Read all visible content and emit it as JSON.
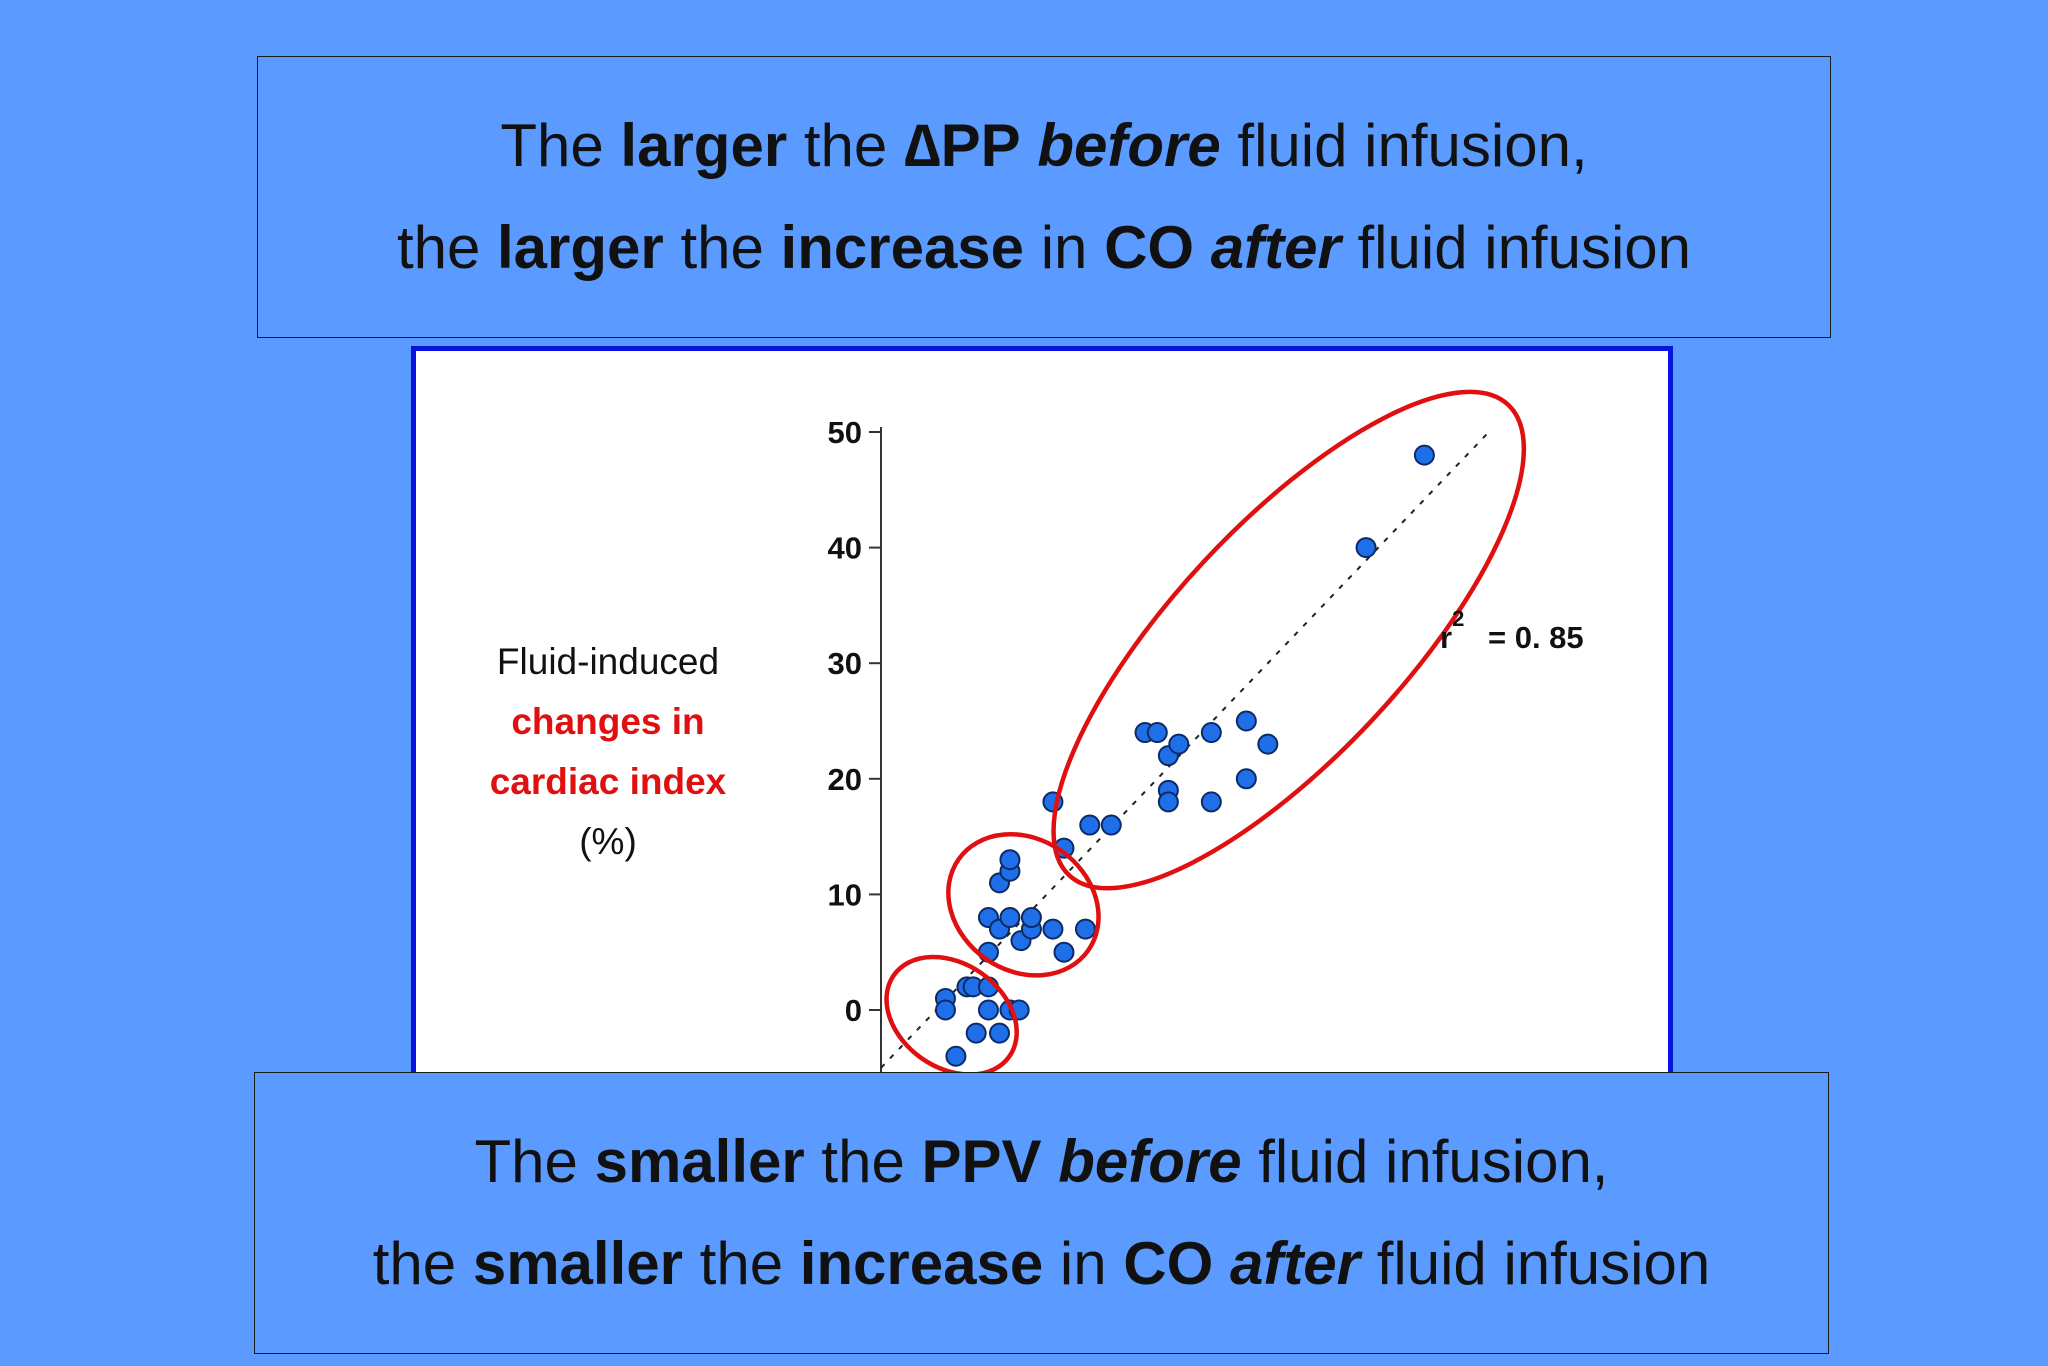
{
  "top_box": {
    "line1": [
      {
        "text": "The ",
        "style": "normal"
      },
      {
        "text": "larger",
        "style": "bold"
      },
      {
        "text": " the ",
        "style": "normal"
      },
      {
        "text": "∆PP",
        "style": "bold"
      },
      {
        "text": " ",
        "style": "normal"
      },
      {
        "text": "before",
        "style": "bold-italic"
      },
      {
        "text": " fluid infusion,",
        "style": "normal"
      }
    ],
    "line2": [
      {
        "text": "the ",
        "style": "normal"
      },
      {
        "text": "larger",
        "style": "bold"
      },
      {
        "text": " the ",
        "style": "normal"
      },
      {
        "text": "increase",
        "style": "bold"
      },
      {
        "text": " in ",
        "style": "normal"
      },
      {
        "text": "CO",
        "style": "bold"
      },
      {
        "text": " ",
        "style": "normal"
      },
      {
        "text": "after",
        "style": "bold-italic"
      },
      {
        "text": " fluid infusion",
        "style": "normal"
      }
    ]
  },
  "bottom_box": {
    "line1": [
      {
        "text": "The ",
        "style": "normal"
      },
      {
        "text": "smaller",
        "style": "bold"
      },
      {
        "text": " the ",
        "style": "normal"
      },
      {
        "text": "PPV",
        "style": "bold"
      },
      {
        "text": " ",
        "style": "normal"
      },
      {
        "text": "before",
        "style": "bold-italic"
      },
      {
        "text": " fluid infusion,",
        "style": "normal"
      }
    ],
    "line2": [
      {
        "text": "the ",
        "style": "normal"
      },
      {
        "text": "smaller",
        "style": "bold"
      },
      {
        "text": " the ",
        "style": "normal"
      },
      {
        "text": "increase",
        "style": "bold"
      },
      {
        "text": " in ",
        "style": "normal"
      },
      {
        "text": "CO",
        "style": "bold"
      },
      {
        "text": " ",
        "style": "normal"
      },
      {
        "text": "after",
        "style": "bold-italic"
      },
      {
        "text": " fluid infusion",
        "style": "normal"
      }
    ]
  },
  "chart_data": {
    "type": "scatter",
    "ylabel": {
      "line1": "Fluid-induced",
      "line2": "changes in",
      "line3": "cardiac index",
      "line4": "(%)"
    },
    "yticks": [
      0,
      10,
      20,
      30,
      40,
      50
    ],
    "ylim": [
      -5,
      50
    ],
    "xlim": [
      0,
      1
    ],
    "annotation": {
      "r_symbol": "r",
      "superscript": "2",
      "value_text": "= 0. 85"
    },
    "colors": {
      "points": "#1f6fe8",
      "ellipses": "#e01010",
      "panel_border": "#0a14e0"
    },
    "points": [
      {
        "x": 0.105,
        "y": 1
      },
      {
        "x": 0.105,
        "y": 0
      },
      {
        "x": 0.122,
        "y": -4
      },
      {
        "x": 0.14,
        "y": 2
      },
      {
        "x": 0.15,
        "y": 2
      },
      {
        "x": 0.155,
        "y": -2
      },
      {
        "x": 0.175,
        "y": 0
      },
      {
        "x": 0.175,
        "y": 2
      },
      {
        "x": 0.193,
        "y": -2
      },
      {
        "x": 0.21,
        "y": 0
      },
      {
        "x": 0.225,
        "y": 0
      },
      {
        "x": 0.175,
        "y": 5
      },
      {
        "x": 0.175,
        "y": 8
      },
      {
        "x": 0.193,
        "y": 7
      },
      {
        "x": 0.21,
        "y": 8
      },
      {
        "x": 0.228,
        "y": 6
      },
      {
        "x": 0.245,
        "y": 7
      },
      {
        "x": 0.245,
        "y": 8
      },
      {
        "x": 0.28,
        "y": 7
      },
      {
        "x": 0.298,
        "y": 5
      },
      {
        "x": 0.333,
        "y": 7
      },
      {
        "x": 0.193,
        "y": 11
      },
      {
        "x": 0.21,
        "y": 12
      },
      {
        "x": 0.21,
        "y": 13
      },
      {
        "x": 0.28,
        "y": 18
      },
      {
        "x": 0.298,
        "y": 14
      },
      {
        "x": 0.34,
        "y": 16
      },
      {
        "x": 0.375,
        "y": 16
      },
      {
        "x": 0.43,
        "y": 24
      },
      {
        "x": 0.45,
        "y": 24
      },
      {
        "x": 0.468,
        "y": 22
      },
      {
        "x": 0.485,
        "y": 23
      },
      {
        "x": 0.468,
        "y": 19
      },
      {
        "x": 0.468,
        "y": 18
      },
      {
        "x": 0.538,
        "y": 24
      },
      {
        "x": 0.538,
        "y": 18
      },
      {
        "x": 0.595,
        "y": 25
      },
      {
        "x": 0.595,
        "y": 20
      },
      {
        "x": 0.63,
        "y": 23
      },
      {
        "x": 0.79,
        "y": 40
      },
      {
        "x": 0.885,
        "y": 48
      }
    ],
    "regression": {
      "x": [
        0.0,
        0.99
      ],
      "y": [
        -5,
        50
      ]
    },
    "ellipses": [
      {
        "cx": 0.115,
        "cy": -0.5,
        "rx": 0.115,
        "ry": 4.5,
        "rotate": 35
      },
      {
        "cx": 0.232,
        "cy": 9.1,
        "rx": 0.129,
        "ry": 5.7,
        "rotate": 35
      },
      {
        "cx": 0.664,
        "cy": 32.0,
        "rx": 0.524,
        "ry": 10.0,
        "rotate": -47
      }
    ]
  }
}
